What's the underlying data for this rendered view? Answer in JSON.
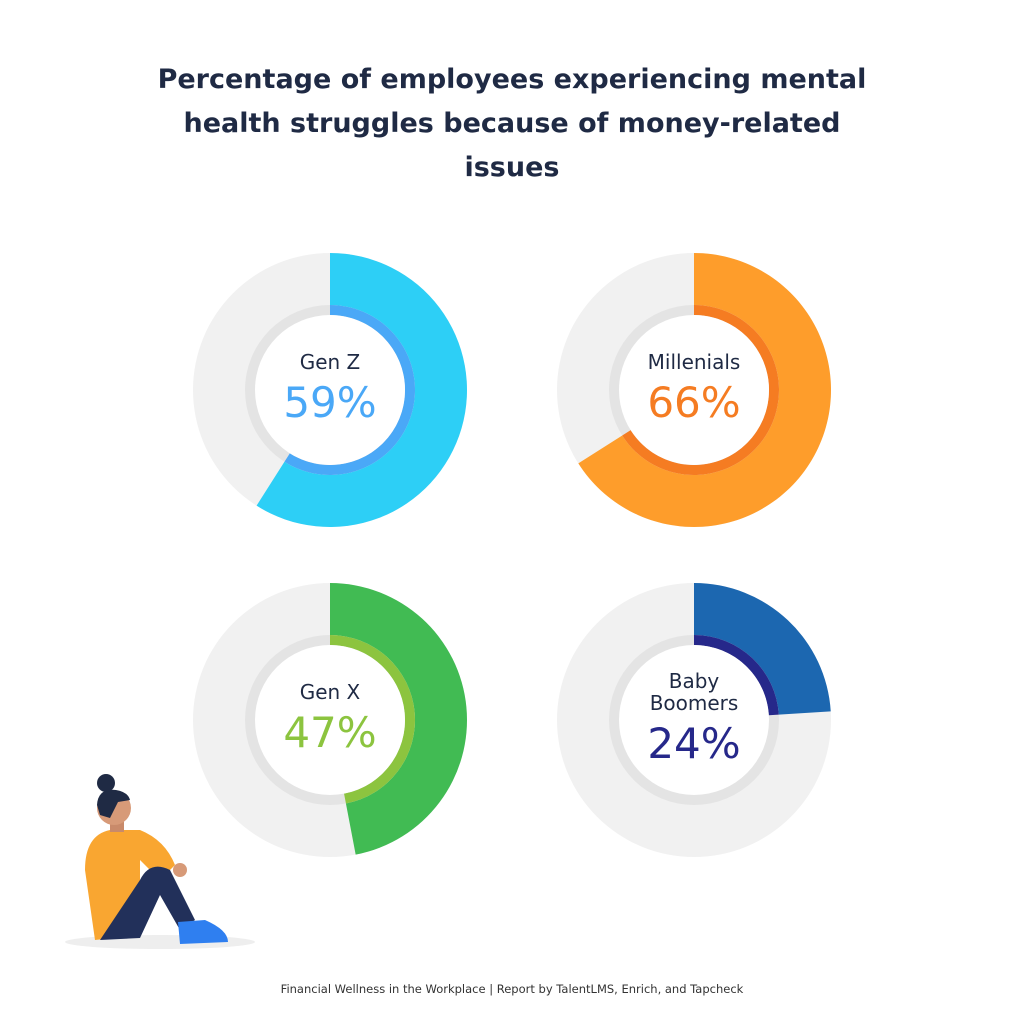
{
  "title": "Percentage of employees experiencing mental health struggles because of money-related issues",
  "source": "Financial Wellness in the Workplace | Report by TalentLMS, Enrich, and Tapcheck",
  "chart_data": [
    {
      "type": "donut",
      "title": "Gen Z",
      "values": [
        59
      ],
      "value_labels": [
        "59%"
      ],
      "ylim": [
        0,
        100
      ],
      "color": "#2dcff6",
      "accent_color": "#4aa8f7"
    },
    {
      "type": "donut",
      "title": "Millenials",
      "values": [
        66
      ],
      "value_labels": [
        "66%"
      ],
      "ylim": [
        0,
        100
      ],
      "color": "#fe9d2b",
      "accent_color": "#f57c22"
    },
    {
      "type": "donut",
      "title": "Gen X",
      "values": [
        47
      ],
      "value_labels": [
        "47%"
      ],
      "ylim": [
        0,
        100
      ],
      "color": "#41bb53",
      "accent_color": "#8cc43f"
    },
    {
      "type": "donut",
      "title": "Baby Boomers",
      "values": [
        24
      ],
      "value_labels": [
        "24%"
      ],
      "ylim": [
        0,
        100
      ],
      "color": "#1c67b0",
      "accent_color": "#26288a"
    }
  ]
}
